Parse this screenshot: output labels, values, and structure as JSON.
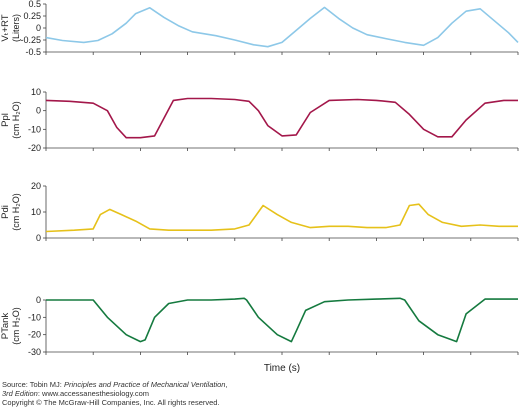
{
  "chart_data": [
    {
      "type": "line",
      "ylabel": "Vₜ+RT",
      "ylabel_unit": "(Liters)",
      "ylim": [
        -0.5,
        0.5
      ],
      "yticks": [
        "0.5",
        "0.25",
        "0",
        "-0.25",
        "-0.5"
      ],
      "ytick_values": [
        0.5,
        0.25,
        0,
        -0.25,
        -0.5
      ],
      "color": "#8dc8e8",
      "series": [
        {
          "x": [
            0.0,
            0.35,
            0.8,
            1.1,
            1.4,
            1.7,
            1.9,
            2.2,
            2.5,
            2.8,
            3.1,
            3.6,
            4.0,
            4.4,
            4.7,
            5.0,
            5.3,
            5.6,
            5.9,
            6.2,
            6.5,
            6.8,
            7.2,
            7.6,
            8.0,
            8.3,
            8.6,
            8.9,
            9.2,
            9.5,
            9.8,
            10.0
          ],
          "y": [
            -0.2,
            -0.26,
            -0.3,
            -0.26,
            -0.12,
            0.1,
            0.3,
            0.42,
            0.22,
            0.05,
            -0.08,
            -0.16,
            -0.25,
            -0.35,
            -0.39,
            -0.3,
            -0.05,
            0.2,
            0.43,
            0.2,
            0.0,
            -0.14,
            -0.22,
            -0.3,
            -0.36,
            -0.2,
            0.1,
            0.35,
            0.4,
            0.15,
            -0.1,
            -0.3
          ]
        }
      ]
    },
    {
      "type": "line",
      "ylabel": "Ppl",
      "ylabel_unit": "(cm H₂O)",
      "ylim": [
        -20,
        10
      ],
      "yticks": [
        "10",
        "0",
        "-10",
        "-20"
      ],
      "ytick_values": [
        10,
        0,
        -10,
        -20
      ],
      "color": "#a3174a",
      "series": [
        {
          "x": [
            0.0,
            0.5,
            1.0,
            1.3,
            1.5,
            1.7,
            2.0,
            2.3,
            2.5,
            2.7,
            3.0,
            3.5,
            4.0,
            4.3,
            4.5,
            4.7,
            5.0,
            5.3,
            5.6,
            6.0,
            6.6,
            7.0,
            7.4,
            7.7,
            8.0,
            8.3,
            8.6,
            8.9,
            9.3,
            9.7,
            10.0
          ],
          "y": [
            5.5,
            5,
            4,
            0,
            -9,
            -14.5,
            -14.5,
            -13.5,
            -4,
            5.5,
            6.5,
            6.5,
            6,
            5,
            0,
            -8,
            -13.5,
            -13,
            -1,
            5.5,
            6,
            5.5,
            4.5,
            -2,
            -10,
            -14,
            -14,
            -5,
            4,
            5.5,
            5.5
          ]
        }
      ]
    },
    {
      "type": "line",
      "ylabel": "Pdi",
      "ylabel_unit": "(cm H₂O)",
      "ylim": [
        0,
        20
      ],
      "yticks": [
        "20",
        "10",
        "0"
      ],
      "ytick_values": [
        20,
        10,
        0
      ],
      "color": "#e6c11a",
      "series": [
        {
          "x": [
            0.0,
            0.6,
            1.0,
            1.15,
            1.35,
            1.6,
            1.9,
            2.2,
            2.6,
            3.0,
            3.5,
            4.0,
            4.3,
            4.6,
            4.9,
            5.2,
            5.6,
            6.0,
            6.4,
            6.8,
            7.2,
            7.5,
            7.7,
            7.9,
            8.1,
            8.4,
            8.8,
            9.2,
            9.6,
            10.0
          ],
          "y": [
            2.5,
            3,
            3.5,
            9,
            11,
            9,
            6.5,
            3.5,
            3,
            3,
            3,
            3.5,
            5,
            12.5,
            9,
            6,
            4,
            4.5,
            4.5,
            4,
            4,
            5,
            12.5,
            13,
            9,
            6,
            4.5,
            5,
            4.5,
            4.5
          ]
        }
      ]
    },
    {
      "type": "line",
      "ylabel": "PTank",
      "ylabel_unit": "(cm H₂O)",
      "xlabel": "Time (s)",
      "ylim": [
        -30,
        0
      ],
      "yticks": [
        "0",
        "-10",
        "-20",
        "-30"
      ],
      "ytick_values": [
        0,
        -10,
        -20,
        -30
      ],
      "color": "#157a3f",
      "series": [
        {
          "x": [
            0.0,
            0.3,
            0.9,
            1.0,
            1.3,
            1.7,
            2.0,
            2.1,
            2.3,
            2.6,
            3.0,
            3.5,
            4.0,
            4.2,
            4.25,
            4.5,
            4.9,
            5.2,
            5.3,
            5.5,
            5.9,
            6.4,
            7.0,
            7.5,
            7.6,
            7.9,
            8.3,
            8.6,
            8.7,
            8.9,
            9.3,
            9.7,
            10.0
          ],
          "y": [
            0,
            0,
            0,
            0,
            -10,
            -20,
            -24,
            -23,
            -10,
            -2,
            0,
            0,
            0.5,
            1,
            0,
            -10,
            -20,
            -24,
            -18,
            -6,
            -1,
            0,
            0.5,
            1,
            0,
            -12,
            -20,
            -23,
            -24,
            -8,
            0.5,
            0.5,
            0.5
          ]
        }
      ]
    }
  ],
  "xlim": [
    0,
    10
  ],
  "xtick_count": 11,
  "xlabel": "Time (s)",
  "footer": {
    "line1_prefix": "Source: Tobin MJ: ",
    "line1_italic": "Principles and Practice of Mechanical Ventilation",
    "line1_suffix": ",",
    "line2_italic": "3rd Edition",
    "line2_suffix": ": www.accessanesthesiology.com",
    "line3": "Copyright © The McGraw-Hill Companies, Inc. All rights reserved."
  }
}
